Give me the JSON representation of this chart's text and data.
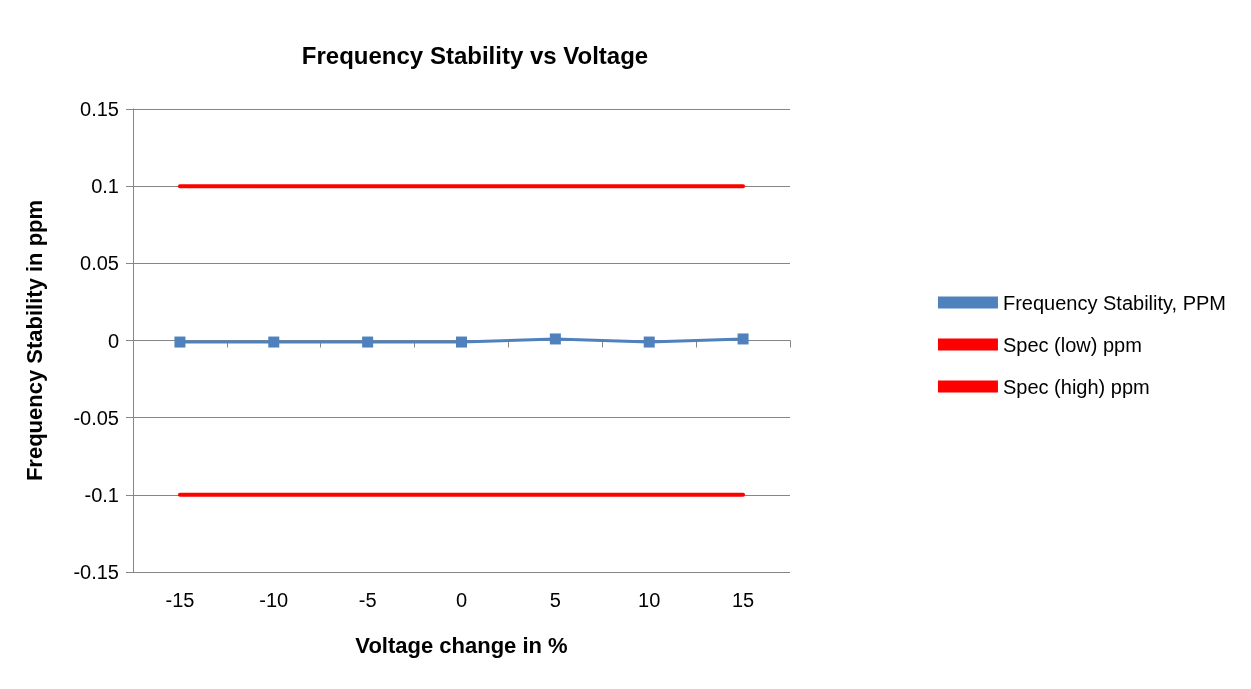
{
  "chart_data": {
    "type": "line",
    "title": "Frequency Stability vs Voltage",
    "xlabel": "Voltage change in %",
    "ylabel": "Frequency Stability in ppm",
    "categories": [
      "-15",
      "-10",
      "-5",
      "0",
      "5",
      "10",
      "15"
    ],
    "series": [
      {
        "name": "Frequency Stability, PPM",
        "color": "#4f81bd",
        "marker": "square",
        "values": [
          -0.001,
          -0.001,
          -0.001,
          -0.001,
          0.001,
          -0.001,
          0.001
        ]
      },
      {
        "name": "Spec (low) ppm",
        "color": "#ff0000",
        "marker": "none",
        "values": [
          -0.1,
          -0.1,
          -0.1,
          -0.1,
          -0.1,
          -0.1,
          -0.1
        ]
      },
      {
        "name": "Spec (high) ppm",
        "color": "#ff0000",
        "marker": "none",
        "values": [
          0.1,
          0.1,
          0.1,
          0.1,
          0.1,
          0.1,
          0.1
        ]
      }
    ],
    "ylim": [
      -0.15,
      0.15
    ],
    "yticks": [
      -0.15,
      -0.1,
      -0.05,
      0,
      0.05,
      0.1,
      0.15
    ],
    "grid": "y",
    "legend": "right"
  }
}
